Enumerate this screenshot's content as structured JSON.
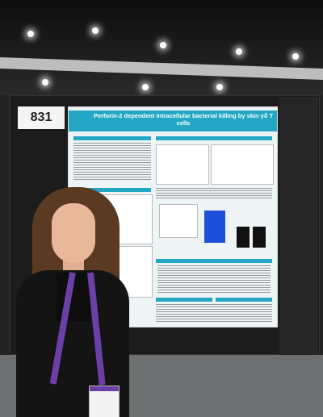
{
  "poster_number": "831",
  "poster": {
    "title": "Perforin-2 dependent intracellular bacterial killing by skin γδ T cells"
  },
  "colors": {
    "poster_accent": "#23a7c4",
    "lanyard": "#6a3fa8",
    "board": "#1c1c1c",
    "floor": "#6d6f70"
  }
}
